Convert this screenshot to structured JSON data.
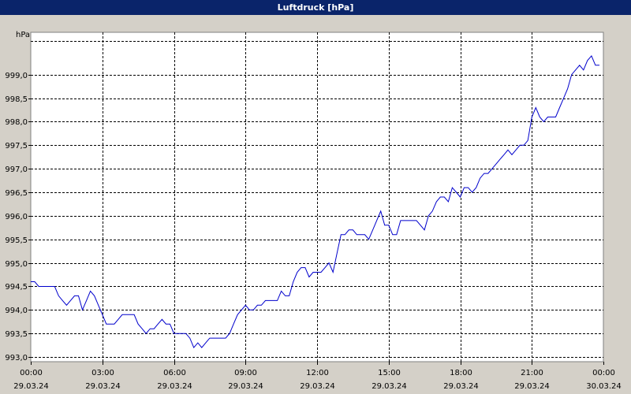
{
  "window": {
    "title": "Luftdruck [hPa]"
  },
  "colors": {
    "background": "#d4d0c8",
    "plot_bg": "#ffffff",
    "series": "#0000cc",
    "titlebar": "#0a246a"
  },
  "chart_data": {
    "type": "line",
    "title": "Luftdruck [hPa]",
    "ylabel": "hPa",
    "xlabel": "",
    "ylim": [
      992.9,
      999.9
    ],
    "grid": true,
    "y_ticks": [
      993.0,
      993.5,
      994.0,
      994.5,
      995.0,
      995.5,
      996.0,
      996.5,
      997.0,
      997.5,
      998.0,
      998.5,
      999.0
    ],
    "y_tick_labels": [
      "993,0",
      "993,5",
      "994,0",
      "994,5",
      "995,0",
      "995,5",
      "996,0",
      "996,5",
      "997,0",
      "997,5",
      "998,0",
      "998,5",
      "999,0"
    ],
    "x_ticks": [
      {
        "time": "00:00",
        "date": "29.03.24"
      },
      {
        "time": "03:00",
        "date": "29.03.24"
      },
      {
        "time": "06:00",
        "date": "29.03.24"
      },
      {
        "time": "09:00",
        "date": "29.03.24"
      },
      {
        "time": "12:00",
        "date": "29.03.24"
      },
      {
        "time": "15:00",
        "date": "29.03.24"
      },
      {
        "time": "18:00",
        "date": "29.03.24"
      },
      {
        "time": "21:00",
        "date": "29.03.24"
      },
      {
        "time": "00:00",
        "date": "30.03.24"
      }
    ],
    "series": [
      {
        "time": [
          "29.03.24 00:00",
          "29.03.24 00:10",
          "29.03.24 00:20",
          "29.03.24 00:40",
          "29.03.24 01:00",
          "29.03.24 01:10",
          "29.03.24 01:20",
          "29.03.24 01:30",
          "29.03.24 01:40",
          "29.03.24 01:50",
          "29.03.24 02:00",
          "29.03.24 02:10",
          "29.03.24 02:20",
          "29.03.24 02:30",
          "29.03.24 02:40",
          "29.03.24 02:50",
          "29.03.24 03:00",
          "29.03.24 03:10",
          "29.03.24 03:20",
          "29.03.24 03:30",
          "29.03.24 03:40",
          "29.03.24 03:50",
          "29.03.24 04:00",
          "29.03.24 04:10",
          "29.03.24 04:20",
          "29.03.24 04:30",
          "29.03.24 04:40",
          "29.03.24 04:50",
          "29.03.24 05:00",
          "29.03.24 05:10",
          "29.03.24 05:20",
          "29.03.24 05:30",
          "29.03.24 05:40",
          "29.03.24 05:50",
          "29.03.24 06:00",
          "29.03.24 06:10",
          "29.03.24 06:20",
          "29.03.24 06:30",
          "29.03.24 06:40",
          "29.03.24 06:50",
          "29.03.24 07:00",
          "29.03.24 07:10",
          "29.03.24 07:20",
          "29.03.24 07:30",
          "29.03.24 07:40",
          "29.03.24 07:50",
          "29.03.24 08:00",
          "29.03.24 08:10",
          "29.03.24 08:20",
          "29.03.24 08:30",
          "29.03.24 08:40",
          "29.03.24 08:50",
          "29.03.24 09:00",
          "29.03.24 09:10",
          "29.03.24 09:20",
          "29.03.24 09:30",
          "29.03.24 09:40",
          "29.03.24 09:50",
          "29.03.24 10:00",
          "29.03.24 10:10",
          "29.03.24 10:20",
          "29.03.24 10:30",
          "29.03.24 10:40",
          "29.03.24 10:50",
          "29.03.24 11:00",
          "29.03.24 11:10",
          "29.03.24 11:20",
          "29.03.24 11:30",
          "29.03.24 11:40",
          "29.03.24 11:50",
          "29.03.24 12:00",
          "29.03.24 12:10",
          "29.03.24 12:20",
          "29.03.24 12:30",
          "29.03.24 12:40",
          "29.03.24 12:50",
          "29.03.24 13:00",
          "29.03.24 13:10",
          "29.03.24 13:20",
          "29.03.24 13:30",
          "29.03.24 13:40",
          "29.03.24 13:50",
          "29.03.24 14:00",
          "29.03.24 14:10",
          "29.03.24 14:20",
          "29.03.24 14:30",
          "29.03.24 14:40",
          "29.03.24 14:50",
          "29.03.24 15:00",
          "29.03.24 15:10",
          "29.03.24 15:20",
          "29.03.24 15:30",
          "29.03.24 15:40",
          "29.03.24 15:50",
          "29.03.24 16:00",
          "29.03.24 16:10",
          "29.03.24 16:20",
          "29.03.24 16:30",
          "29.03.24 16:40",
          "29.03.24 16:50",
          "29.03.24 17:00",
          "29.03.24 17:10",
          "29.03.24 17:20",
          "29.03.24 17:30",
          "29.03.24 17:40",
          "29.03.24 17:50",
          "29.03.24 18:00",
          "29.03.24 18:10",
          "29.03.24 18:20",
          "29.03.24 18:30",
          "29.03.24 18:40",
          "29.03.24 18:50",
          "29.03.24 19:00",
          "29.03.24 19:10",
          "29.03.24 19:20",
          "29.03.24 19:30",
          "29.03.24 19:40",
          "29.03.24 19:50",
          "29.03.24 20:00",
          "29.03.24 20:10",
          "29.03.24 20:20",
          "29.03.24 20:30",
          "29.03.24 20:40",
          "29.03.24 20:50",
          "29.03.24 21:00",
          "29.03.24 21:10",
          "29.03.24 21:20",
          "29.03.24 21:30",
          "29.03.24 21:40",
          "29.03.24 21:50",
          "29.03.24 22:00",
          "29.03.24 22:10",
          "29.03.24 22:20",
          "29.03.24 22:30",
          "29.03.24 22:40",
          "29.03.24 22:50",
          "29.03.24 23:00",
          "29.03.24 23:10",
          "29.03.24 23:20",
          "29.03.24 23:30",
          "29.03.24 23:40",
          "29.03.24 23:50"
        ],
        "values": [
          994.6,
          994.6,
          994.5,
          994.5,
          994.5,
          994.3,
          994.2,
          994.1,
          994.2,
          994.3,
          994.3,
          994.0,
          994.2,
          994.4,
          994.3,
          994.1,
          993.9,
          993.7,
          993.7,
          993.7,
          993.8,
          993.9,
          993.9,
          993.9,
          993.9,
          993.7,
          993.6,
          993.5,
          993.6,
          993.6,
          993.7,
          993.8,
          993.7,
          993.7,
          993.5,
          993.5,
          993.5,
          993.5,
          993.4,
          993.2,
          993.3,
          993.2,
          993.3,
          993.4,
          993.4,
          993.4,
          993.4,
          993.4,
          993.5,
          993.7,
          993.9,
          994.0,
          994.1,
          994.0,
          994.0,
          994.1,
          994.1,
          994.2,
          994.2,
          994.2,
          994.2,
          994.4,
          994.3,
          994.3,
          994.6,
          994.8,
          994.9,
          994.9,
          994.7,
          994.8,
          994.8,
          994.8,
          994.9,
          995.0,
          994.8,
          995.2,
          995.6,
          995.6,
          995.7,
          995.7,
          995.6,
          995.6,
          995.6,
          995.5,
          995.7,
          995.9,
          996.1,
          995.8,
          995.8,
          995.6,
          995.6,
          995.9,
          995.9,
          995.9,
          995.9,
          995.9,
          995.8,
          995.7,
          996.0,
          996.1,
          996.3,
          996.4,
          996.4,
          996.3,
          996.6,
          996.5,
          996.4,
          996.6,
          996.6,
          996.5,
          996.6,
          996.8,
          996.9,
          996.9,
          997.0,
          997.1,
          997.2,
          997.3,
          997.4,
          997.3,
          997.4,
          997.5,
          997.5,
          997.6,
          998.1,
          998.3,
          998.1,
          998.0,
          998.1,
          998.1,
          998.1,
          998.3,
          998.5,
          998.7,
          999.0,
          999.1,
          999.2,
          999.1,
          999.3,
          999.4,
          999.2,
          999.2
        ]
      }
    ]
  }
}
